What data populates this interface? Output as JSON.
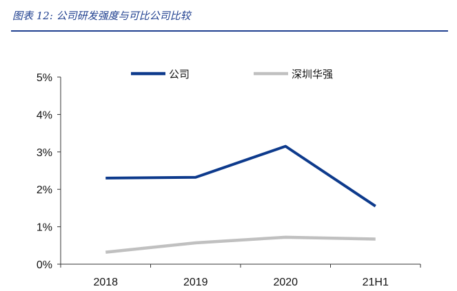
{
  "figure_title": "图表 12:  公司研发强度与可比公司比较",
  "chart_data": {
    "type": "line",
    "categories": [
      "2018",
      "2019",
      "2020",
      "21H1"
    ],
    "yticks": [
      "0%",
      "1%",
      "2%",
      "3%",
      "4%",
      "5%"
    ],
    "ylim": [
      0,
      5
    ],
    "unit": "%",
    "grid": false,
    "legend_position": "top",
    "series": [
      {
        "name": "公司",
        "values": [
          2.3,
          2.32,
          3.15,
          1.55
        ],
        "color": "#0d3a8c"
      },
      {
        "name": "深圳华强",
        "values": [
          0.32,
          0.57,
          0.72,
          0.67
        ],
        "color": "#c0c0c0"
      }
    ]
  }
}
